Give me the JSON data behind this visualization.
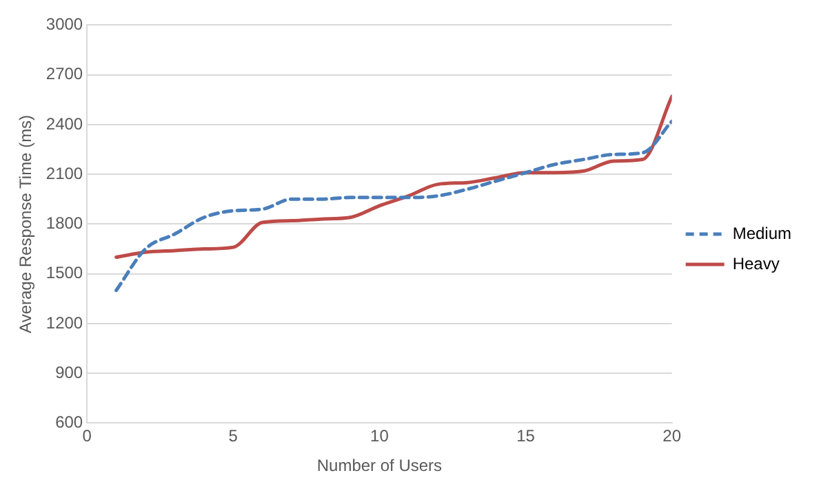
{
  "chart_data": {
    "type": "line",
    "xlabel": "Number of Users",
    "ylabel": "Average Response Time (ms)",
    "x": [
      1,
      2,
      3,
      4,
      5,
      6,
      7,
      8,
      9,
      10,
      11,
      12,
      13,
      14,
      15,
      16,
      17,
      18,
      19,
      20
    ],
    "series": [
      {
        "name": "Medium",
        "color": "#4a7ebb",
        "line_style": "dashed",
        "values": [
          1400,
          1650,
          1740,
          1840,
          1880,
          1890,
          1950,
          1950,
          1960,
          1960,
          1960,
          1970,
          2010,
          2060,
          2110,
          2160,
          2190,
          2220,
          2230,
          2420
        ]
      },
      {
        "name": "Heavy",
        "color": "#be4b48",
        "line_style": "solid",
        "values": [
          1600,
          1630,
          1640,
          1650,
          1660,
          1810,
          1820,
          1830,
          1840,
          1910,
          1970,
          2040,
          2050,
          2080,
          2110,
          2110,
          2120,
          2180,
          2190,
          2570
        ]
      }
    ],
    "xlim": [
      0,
      20
    ],
    "xticks": [
      0,
      5,
      10,
      15,
      20
    ],
    "ylim": [
      600,
      3000
    ],
    "yticks": [
      600,
      900,
      1200,
      1500,
      1800,
      2100,
      2400,
      2700,
      3000
    ],
    "grid": "y",
    "legend": "right",
    "marker": "none"
  }
}
